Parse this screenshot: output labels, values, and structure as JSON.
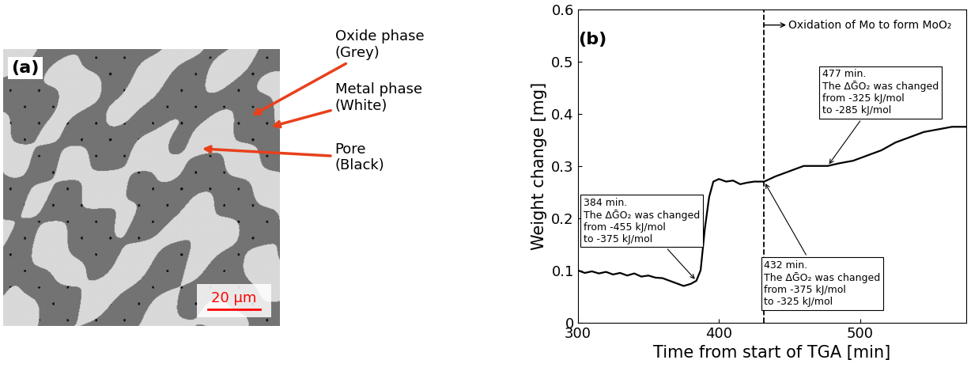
{
  "image_panel": {
    "panel_label": "(a)",
    "labels": [
      "Oxide phase\n(Grey)",
      "Metal phase\n(White)",
      "Pore\n(Black)"
    ],
    "scale_bar": "20 μm"
  },
  "chart_data": {
    "type": "line",
    "panel_label": "(b)",
    "x_label": "Time from start of TGA [min]",
    "y_label": "Weight change [mg]",
    "x": [
      300,
      305,
      310,
      315,
      320,
      325,
      330,
      335,
      340,
      345,
      350,
      355,
      360,
      365,
      370,
      375,
      380,
      384,
      387,
      390,
      393,
      396,
      400,
      405,
      410,
      415,
      420,
      425,
      432,
      440,
      450,
      460,
      470,
      477,
      485,
      495,
      505,
      515,
      525,
      535,
      545,
      555,
      565,
      575
    ],
    "series": [
      {
        "name": "Weight change",
        "color": "#000000",
        "values": [
          0.1,
          0.095,
          0.098,
          0.094,
          0.097,
          0.092,
          0.095,
          0.09,
          0.094,
          0.088,
          0.09,
          0.086,
          0.085,
          0.08,
          0.075,
          0.07,
          0.074,
          0.08,
          0.1,
          0.18,
          0.24,
          0.27,
          0.275,
          0.27,
          0.272,
          0.265,
          0.268,
          0.27,
          0.27,
          0.28,
          0.29,
          0.3,
          0.3,
          0.3,
          0.305,
          0.31,
          0.32,
          0.33,
          0.345,
          0.355,
          0.365,
          0.37,
          0.375,
          0.375
        ]
      }
    ],
    "xlim": [
      300,
      575
    ],
    "xticks": [
      300,
      400,
      500
    ],
    "ylim": [
      0,
      0.6
    ],
    "yticks": [
      0,
      0.1,
      0.2,
      0.3,
      0.4,
      0.5,
      0.6
    ],
    "vline": {
      "x": 432,
      "label": "Oxidation of Mo to form MoO₂"
    },
    "annotations": [
      {
        "x": 384,
        "y": 0.08,
        "text": "384 min.\nThe ΔḠO₂ was changed\nfrom -455 kJ/mol\nto -375 kJ/mol"
      },
      {
        "x": 432,
        "y": 0.27,
        "text": "432 min.\nThe ΔḠO₂ was changed\nfrom -375 kJ/mol\nto -325 kJ/mol"
      },
      {
        "x": 477,
        "y": 0.3,
        "text": "477 min.\nThe ΔḠO₂ was changed\nfrom -325 kJ/mol\nto -285 kJ/mol"
      }
    ]
  }
}
